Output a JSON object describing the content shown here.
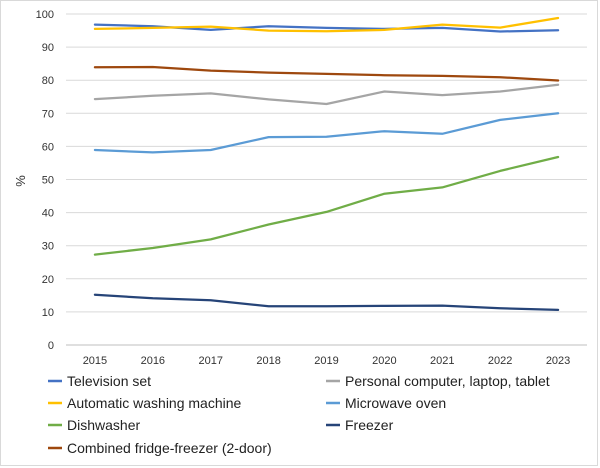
{
  "chart_data": {
    "type": "line",
    "title": "",
    "xlabel": "",
    "ylabel": "%",
    "ylim": [
      0,
      100
    ],
    "y_ticks": [
      0,
      10,
      20,
      30,
      40,
      50,
      60,
      70,
      80,
      90,
      100
    ],
    "grid": true,
    "legend_position": "bottom",
    "x": [
      "2015",
      "2016",
      "2017",
      "2018",
      "2019",
      "2020",
      "2021",
      "2022",
      "2023"
    ],
    "series": [
      {
        "name": "Television set",
        "color": "#4472c4",
        "values": [
          96.8,
          96.3,
          95.2,
          96.3,
          95.8,
          95.5,
          95.8,
          94.7,
          95.1
        ]
      },
      {
        "name": "Personal computer, laptop, tablet",
        "color": "#a5a5a5",
        "values": [
          74.3,
          75.3,
          76.0,
          74.2,
          72.8,
          76.6,
          75.5,
          76.6,
          78.6
        ]
      },
      {
        "name": "Automatic washing machine",
        "color": "#ffc000",
        "values": [
          95.5,
          95.8,
          96.2,
          95.0,
          94.8,
          95.2,
          96.8,
          95.9,
          98.8
        ]
      },
      {
        "name": "Microwave oven",
        "color": "#5b9bd5",
        "values": [
          58.9,
          58.2,
          58.9,
          62.8,
          62.9,
          64.6,
          63.8,
          68.0,
          70.0
        ]
      },
      {
        "name": "Dishwasher",
        "color": "#70ad47",
        "values": [
          27.3,
          29.3,
          31.9,
          36.4,
          40.2,
          45.7,
          47.6,
          52.6,
          56.8
        ]
      },
      {
        "name": "Freezer",
        "color": "#264478",
        "values": [
          15.2,
          14.1,
          13.5,
          11.7,
          11.7,
          11.8,
          11.9,
          11.1,
          10.6
        ]
      },
      {
        "name": "Combined fridge-freezer (2-door)",
        "color": "#9e480e",
        "values": [
          83.9,
          84.0,
          82.9,
          82.3,
          81.9,
          81.5,
          81.3,
          80.9,
          79.9
        ]
      }
    ]
  }
}
